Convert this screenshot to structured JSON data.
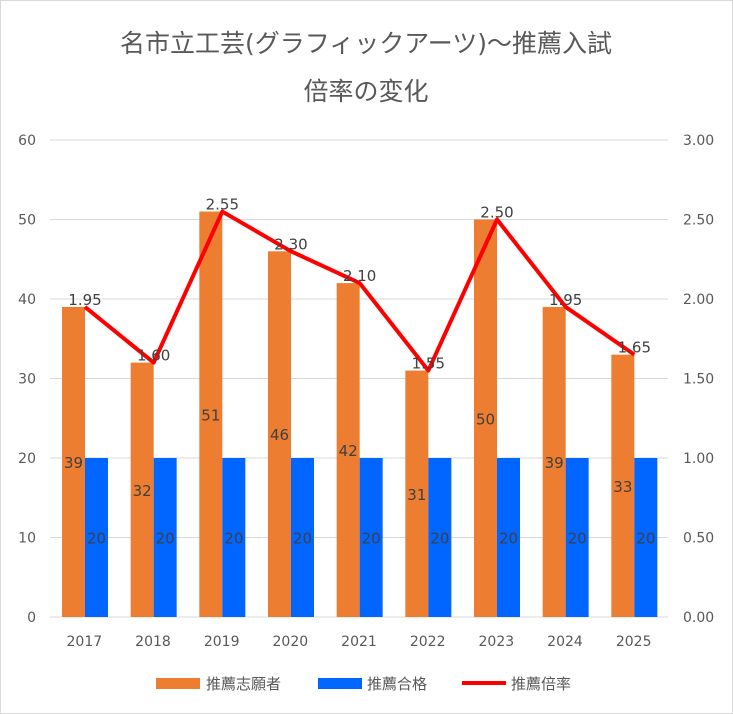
{
  "chart_data": {
    "type": "bar",
    "title_line1": "名市立工芸(グラフィックアーツ)～推薦入試",
    "title_line2": "倍率の変化",
    "categories": [
      "2017",
      "2018",
      "2019",
      "2020",
      "2021",
      "2022",
      "2023",
      "2024",
      "2025"
    ],
    "series": [
      {
        "name": "推薦志願者",
        "type": "bar",
        "axis": "left",
        "color": "#ED7D31",
        "values": [
          39,
          32,
          51,
          46,
          42,
          31,
          50,
          39,
          33
        ]
      },
      {
        "name": "推薦合格",
        "type": "bar",
        "axis": "left",
        "color": "#0066FF",
        "values": [
          20,
          20,
          20,
          20,
          20,
          20,
          20,
          20,
          20
        ]
      },
      {
        "name": "推薦倍率",
        "type": "line",
        "axis": "right",
        "color": "#FF0000",
        "values": [
          1.95,
          1.6,
          2.55,
          2.3,
          2.1,
          1.55,
          2.5,
          1.95,
          1.65
        ],
        "labels": [
          "1.95",
          "1.60",
          "2.55",
          "2.30",
          "2.10",
          "1.55",
          "2.50",
          "1.95",
          "1.65"
        ]
      }
    ],
    "ylim": [
      0,
      60
    ],
    "yticks": [
      "0",
      "10",
      "20",
      "30",
      "40",
      "50",
      "60"
    ],
    "y2lim": [
      0,
      3
    ],
    "y2ticks": [
      "0.00",
      "0.50",
      "1.00",
      "1.50",
      "2.00",
      "2.50",
      "3.00"
    ],
    "grid": true,
    "legend_position": "bottom"
  }
}
